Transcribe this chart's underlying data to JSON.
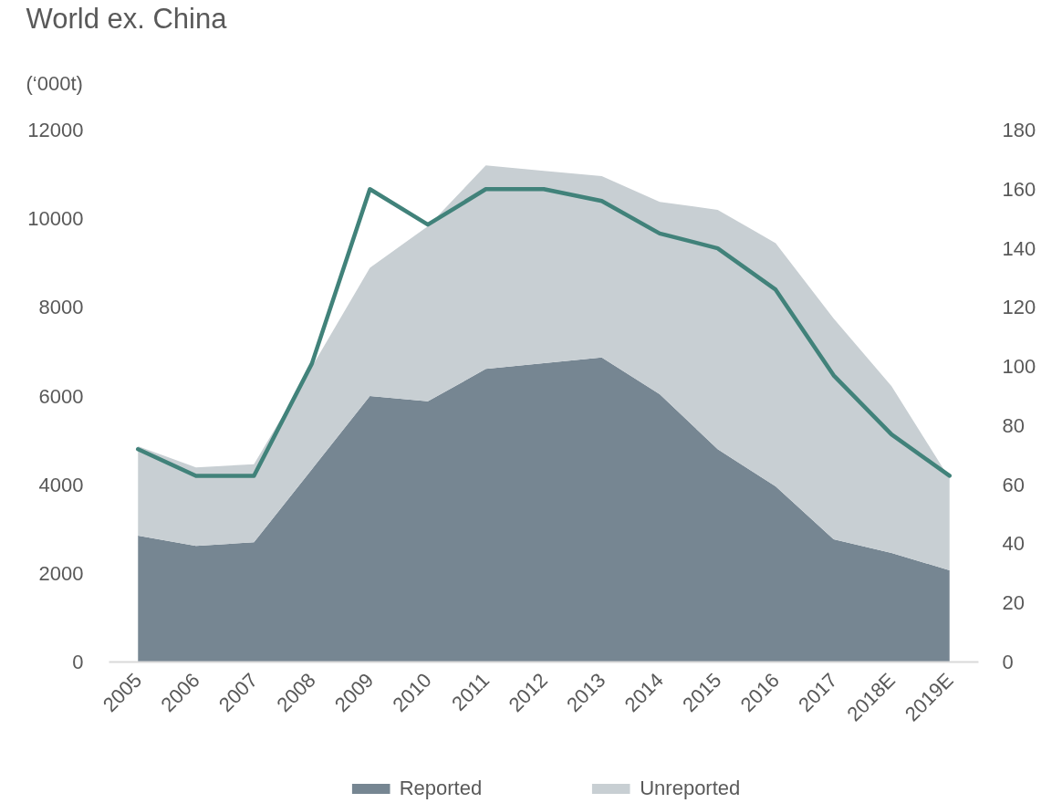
{
  "chart_data": {
    "type": "area",
    "title": "World ex. China",
    "subtitle": "(‘000t)",
    "stacked": true,
    "legend": "bottom",
    "categories": [
      "2005",
      "2006",
      "2007",
      "2008",
      "2009",
      "2010",
      "2011",
      "2012",
      "2013",
      "2014",
      "2015",
      "2016",
      "2017",
      "2018E",
      "2019E"
    ],
    "ylim": [
      0,
      12000
    ],
    "yticks": [
      0,
      2000,
      4000,
      6000,
      8000,
      10000,
      12000
    ],
    "y2lim": [
      0,
      180
    ],
    "y2ticks": [
      0,
      20,
      40,
      60,
      80,
      100,
      120,
      140,
      160,
      180
    ],
    "series": [
      {
        "name": "Reported",
        "color": "#768692",
        "values": [
          2850,
          2620,
          2700,
          4350,
          6000,
          5880,
          6610,
          6740,
          6870,
          6040,
          4800,
          3960,
          2770,
          2460,
          2070
        ]
      },
      {
        "name": "Unreported",
        "color": "#c8cfd3",
        "values": [
          2020,
          1770,
          1760,
          2310,
          2890,
          3950,
          4590,
          4340,
          4090,
          4340,
          5400,
          5490,
          4980,
          3760,
          2070
        ]
      },
      {
        "type": "line",
        "axis": "y2",
        "color": "#41827a",
        "values": [
          72,
          63,
          63,
          101,
          160,
          148,
          160,
          160,
          156,
          145,
          140,
          126,
          97,
          77,
          63
        ]
      }
    ]
  }
}
